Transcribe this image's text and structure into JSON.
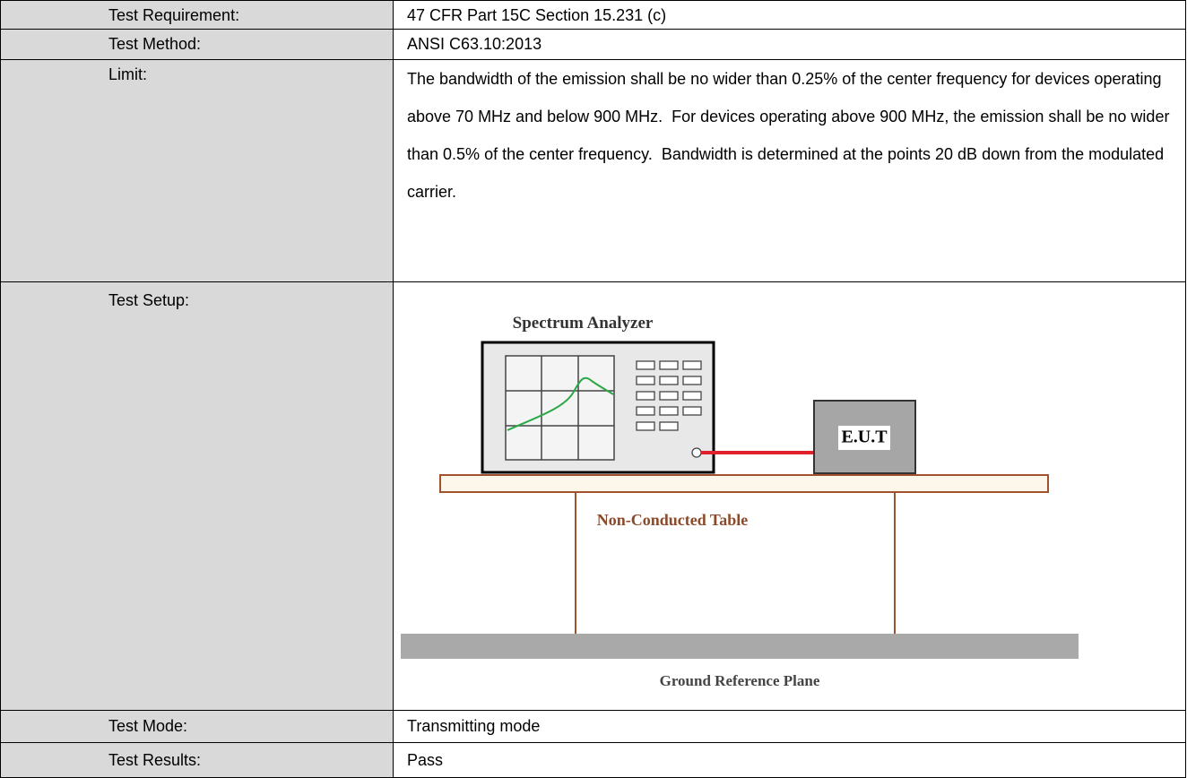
{
  "table": {
    "rows": [
      [
        "Test Requirement:",
        "47 CFR Part 15C Section 15.231 (c)"
      ],
      [
        "Test Method:",
        "ANSI C63.10:2013"
      ],
      [
        "Limit:",
        "The bandwidth of the emission shall be no wider than 0.25% of the center frequency for devices operating above 70 MHz and below 900 MHz.  For devices operating above 900 MHz, the emission shall be no wider than 0.5% of the center frequency.  Bandwidth is determined at the points 20 dB down from the modulated carrier."
      ],
      [
        "Test Setup:"
      ],
      [
        "Test Mode:",
        "Transmitting mode"
      ],
      [
        "Test Results:",
        "Pass"
      ]
    ]
  },
  "diagram": {
    "analyzer": "Spectrum Analyzer",
    "eut": "E.U.T",
    "table": "Non-Conducted Table",
    "ground": "Ground Reference Plane"
  }
}
